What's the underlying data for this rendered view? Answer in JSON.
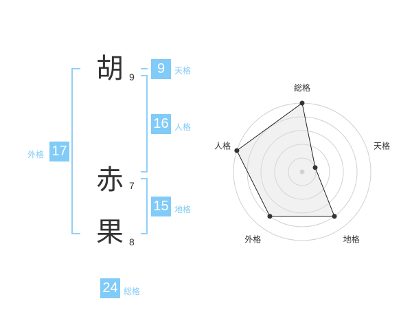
{
  "name": {
    "chars": [
      {
        "char": "胡",
        "strokes": "9"
      },
      {
        "char": "赤",
        "strokes": "7"
      },
      {
        "char": "果",
        "strokes": "8"
      }
    ]
  },
  "kaku": {
    "tenkaku": {
      "label": "天格",
      "value": "9"
    },
    "jinkaku": {
      "label": "人格",
      "value": "16"
    },
    "chikaku": {
      "label": "地格",
      "value": "15"
    },
    "gaikaku": {
      "label": "外格",
      "value": "17"
    },
    "soukaku": {
      "label": "総格",
      "value": "24"
    }
  },
  "colors": {
    "accent": "#80cbf7",
    "text": "#333333"
  },
  "chart_data": {
    "type": "radar",
    "axes": [
      "総格",
      "天格",
      "地格",
      "外格",
      "人格"
    ],
    "values": [
      5,
      1,
      4,
      4,
      5
    ],
    "range": [
      0,
      5
    ],
    "rings": 5
  }
}
